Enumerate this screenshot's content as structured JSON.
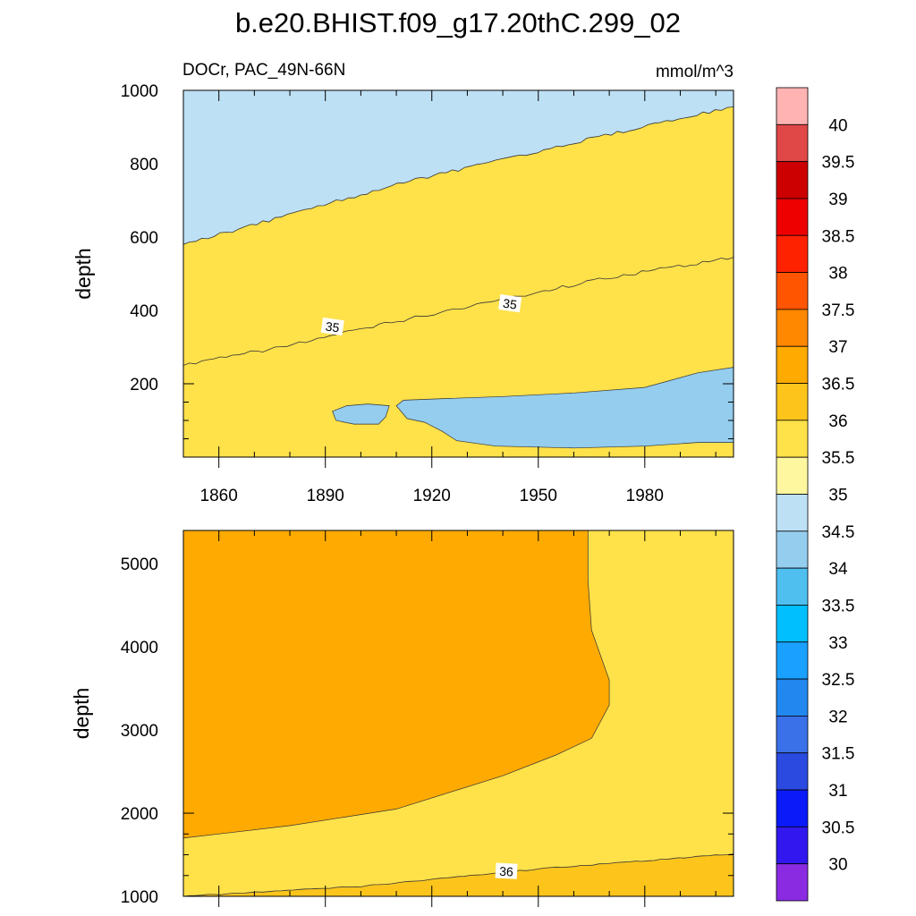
{
  "title": "b.e20.BHIST.f09_g17.20thC.299_02",
  "subtitle_left": "DOCr, PAC_49N-66N",
  "subtitle_right": "mmol/m^3",
  "chart_data": [
    {
      "type": "heatmap",
      "panel": "upper",
      "ylabel": "depth",
      "xlabel": "",
      "xlim": [
        1850,
        2005
      ],
      "ylim": [
        1000,
        0
      ],
      "x_ticks": [
        1860,
        1890,
        1920,
        1950,
        1980
      ],
      "y_ticks": [
        200,
        400,
        600,
        800,
        1000
      ],
      "contour_labels": [
        {
          "text": "35",
          "x": 1892,
          "y": 355
        },
        {
          "text": "35",
          "x": 1942,
          "y": 418
        }
      ],
      "boundaries": [
        {
          "level": 35.0,
          "x": [
            1850,
            1880,
            1910,
            1940,
            1970,
            2005
          ],
          "y": [
            250,
            305,
            370,
            430,
            490,
            545
          ]
        },
        {
          "level": 35.5,
          "x": [
            1850,
            1880,
            1910,
            1940,
            1970,
            2005
          ],
          "y": [
            580,
            660,
            745,
            810,
            880,
            955
          ]
        }
      ],
      "patches": [
        {
          "level": 34.0,
          "x": [
            1892,
            1893,
            1898,
            1905,
            1907,
            1908,
            1902,
            1896
          ],
          "y": [
            125,
            100,
            90,
            90,
            110,
            140,
            145,
            140
          ]
        },
        {
          "level": 34.0,
          "x": [
            1910,
            1913,
            1918,
            1923,
            1927,
            1938,
            1960,
            1980,
            1995,
            2005,
            2005,
            1995,
            1980,
            1960,
            1940,
            1925,
            1912
          ],
          "y": [
            140,
            105,
            95,
            70,
            45,
            30,
            25,
            30,
            40,
            40,
            245,
            230,
            190,
            175,
            165,
            160,
            155
          ]
        }
      ]
    },
    {
      "type": "heatmap",
      "panel": "lower",
      "ylabel": "depth",
      "xlabel": "",
      "xlim": [
        1850,
        2005
      ],
      "ylim": [
        5400,
        1000
      ],
      "y_ticks": [
        1000,
        2000,
        3000,
        4000,
        5000
      ],
      "contour_labels": [
        {
          "text": "36",
          "x": 1941,
          "y": 1300
        }
      ],
      "boundaries": [
        {
          "level": 36.0,
          "x": [
            1850,
            1900,
            1950,
            2005
          ],
          "y": [
            1000,
            1120,
            1330,
            1510
          ]
        }
      ],
      "patches": [
        {
          "level": 36.5,
          "x": [
            1850,
            1880,
            1910,
            1940,
            1955,
            1965,
            1970,
            1970,
            1965,
            1964,
            1964,
            1850
          ],
          "y": [
            1700,
            1850,
            2050,
            2450,
            2700,
            2900,
            3300,
            3600,
            4200,
            4800,
            5400,
            5400
          ]
        }
      ]
    }
  ],
  "colorbar": {
    "labels": [
      "40",
      "39.5",
      "39",
      "38.5",
      "38",
      "37.5",
      "37",
      "36.5",
      "36",
      "35.5",
      "35",
      "34.5",
      "34",
      "33.5",
      "33",
      "32.5",
      "32",
      "31.5",
      "31",
      "30.5",
      "30"
    ],
    "colors": [
      "#ffb3b3",
      "#e04848",
      "#cc0000",
      "#ee0000",
      "#ff2200",
      "#ff5500",
      "#ff8800",
      "#ffaa00",
      "#fdc51c",
      "#ffe14a",
      "#fff7a0",
      "#bde0f5",
      "#94cdee",
      "#4fbff0",
      "#00bfff",
      "#1aa0ff",
      "#2288f0",
      "#3a70e8",
      "#2a4ae0",
      "#0a1af8",
      "#3218ee",
      "#8a2be2"
    ]
  },
  "level_colors": {
    "34": "#94cdee",
    "34.5": "#bde0f5",
    "35": "#fff7a0",
    "35.5": "#ffe14a",
    "36": "#fdc51c",
    "36.5": "#ffaa00"
  }
}
